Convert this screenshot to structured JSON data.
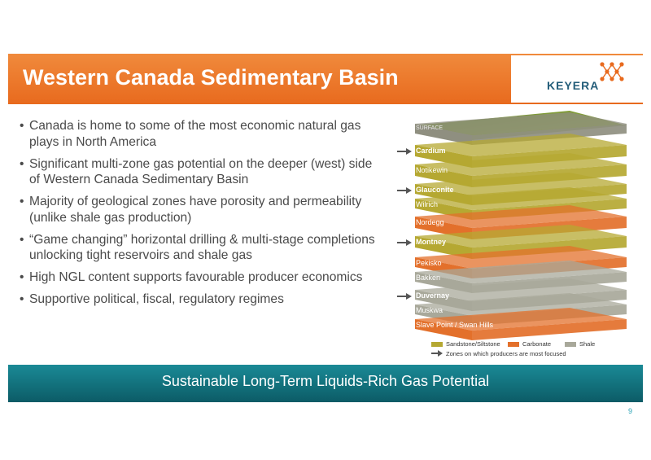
{
  "header": {
    "title": "Western Canada Sedimentary Basin",
    "logo_text": "KEYERA"
  },
  "bullets": [
    "Canada is home to some of the most economic natural gas plays in North America",
    "Significant multi-zone gas potential on the deeper (west) side of Western Canada Sedimentary Basin",
    "Majority of geological zones have porosity and permeability (unlike shale gas production)",
    "“Game changing” horizontal drilling & multi-stage completions unlocking tight reservoirs and shale gas",
    "High NGL content supports favourable producer economics",
    "Supportive political, fiscal, regulatory regimes"
  ],
  "bullet_symbol": "•",
  "strata": {
    "layers": [
      {
        "label": "SURFACE",
        "type": "surface",
        "focused": false
      },
      {
        "label": "Cardium",
        "type": "sandstone",
        "focused": true
      },
      {
        "label": "Notikewin",
        "type": "sandstone",
        "focused": false
      },
      {
        "label": "Glauconite",
        "type": "sandstone",
        "focused": true
      },
      {
        "label": "Wilrich",
        "type": "sandstone",
        "focused": false
      },
      {
        "label": "Nordegg",
        "type": "carbonate",
        "focused": false
      },
      {
        "label": "Montney",
        "type": "sandstone",
        "focused": true
      },
      {
        "label": "Pekisko",
        "type": "carbonate",
        "focused": false
      },
      {
        "label": "Bakken",
        "type": "shale",
        "focused": false
      },
      {
        "label": "Duvernay",
        "type": "shale",
        "focused": true
      },
      {
        "label": "Muskwa",
        "type": "shale",
        "focused": false
      },
      {
        "label": "Slave Point / Swan Hills",
        "type": "carbonate",
        "focused": false
      }
    ],
    "colors": {
      "sandstone": "#b5a832",
      "carbonate": "#e3702b",
      "shale": "#a8a89a",
      "surface": "#8f8f80"
    }
  },
  "legend": {
    "sandstone": "Sandstone/Siltstone",
    "carbonate": "Carbonate",
    "shale": "Shale",
    "focus_note": "Zones on which producers are most focused"
  },
  "footer": {
    "text": "Sustainable Long-Term Liquids-Rich Gas Potential"
  },
  "page_number": "9"
}
